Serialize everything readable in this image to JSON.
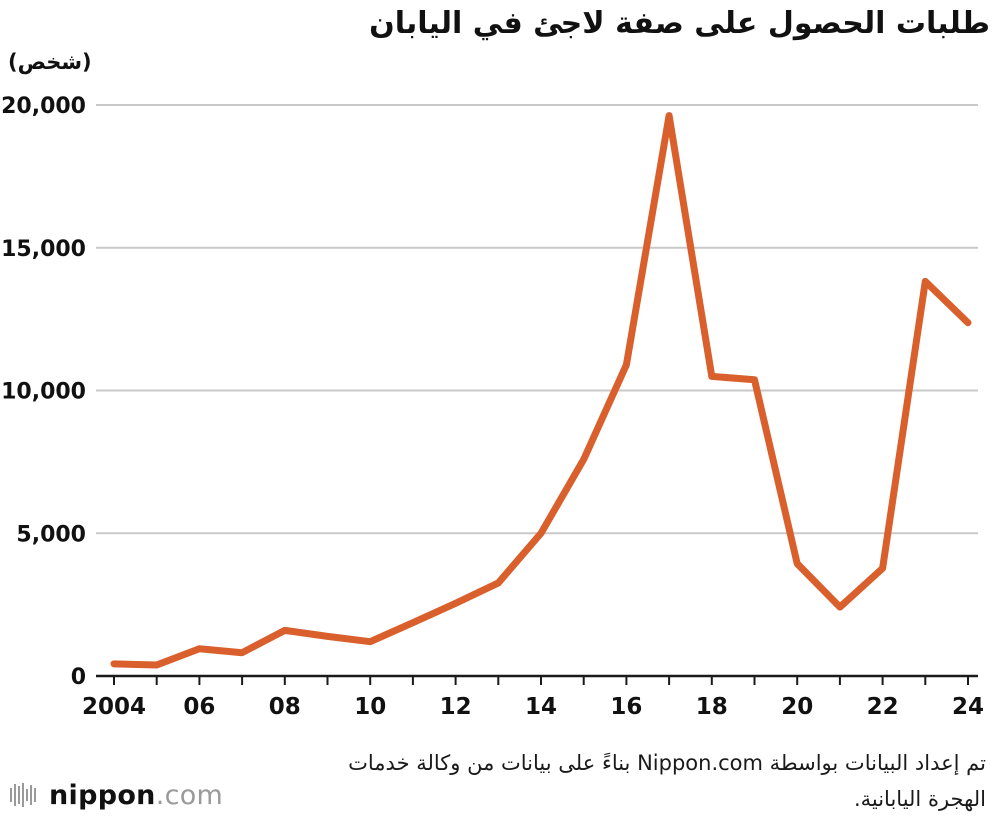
{
  "title": "طلبات الحصول على صفة لاجئ في اليابان",
  "unit_label": "(شخص)",
  "source_note": {
    "line1": "تم إعداد البيانات بواسطة Nippon.com بناءً على بيانات من وكالة خدمات",
    "line2": "الهجرة اليابانية."
  },
  "logo": {
    "name": "nippon",
    "domain": ".com",
    "icon": "sound-bars-icon"
  },
  "chart_data": {
    "type": "line",
    "title": "طلبات الحصول على صفة لاجئ في اليابان",
    "ylabel": "(شخص)",
    "x": [
      2004,
      2005,
      2006,
      2007,
      2008,
      2009,
      2010,
      2011,
      2012,
      2013,
      2014,
      2015,
      2016,
      2017,
      2018,
      2019,
      2020,
      2021,
      2022,
      2023,
      2024
    ],
    "values": [
      426,
      384,
      954,
      816,
      1599,
      1388,
      1202,
      1867,
      2545,
      3260,
      5000,
      7586,
      10901,
      19629,
      10493,
      10375,
      3936,
      2413,
      3772,
      13823,
      12373
    ],
    "x_tick_labels": [
      "2004",
      "06",
      "08",
      "10",
      "12",
      "14",
      "16",
      "18",
      "20",
      "22",
      "24"
    ],
    "y_ticks": [
      0,
      5000,
      10000,
      15000,
      20000
    ],
    "y_tick_labels": [
      "0",
      "5,000",
      "10,000",
      "15,000",
      "20,000"
    ],
    "ylim": [
      0,
      20000
    ],
    "grid": true,
    "legend": "none",
    "line_color": "#D9602C",
    "grid_color": "#c9c9c9",
    "axis_color": "#1a1a1a"
  }
}
